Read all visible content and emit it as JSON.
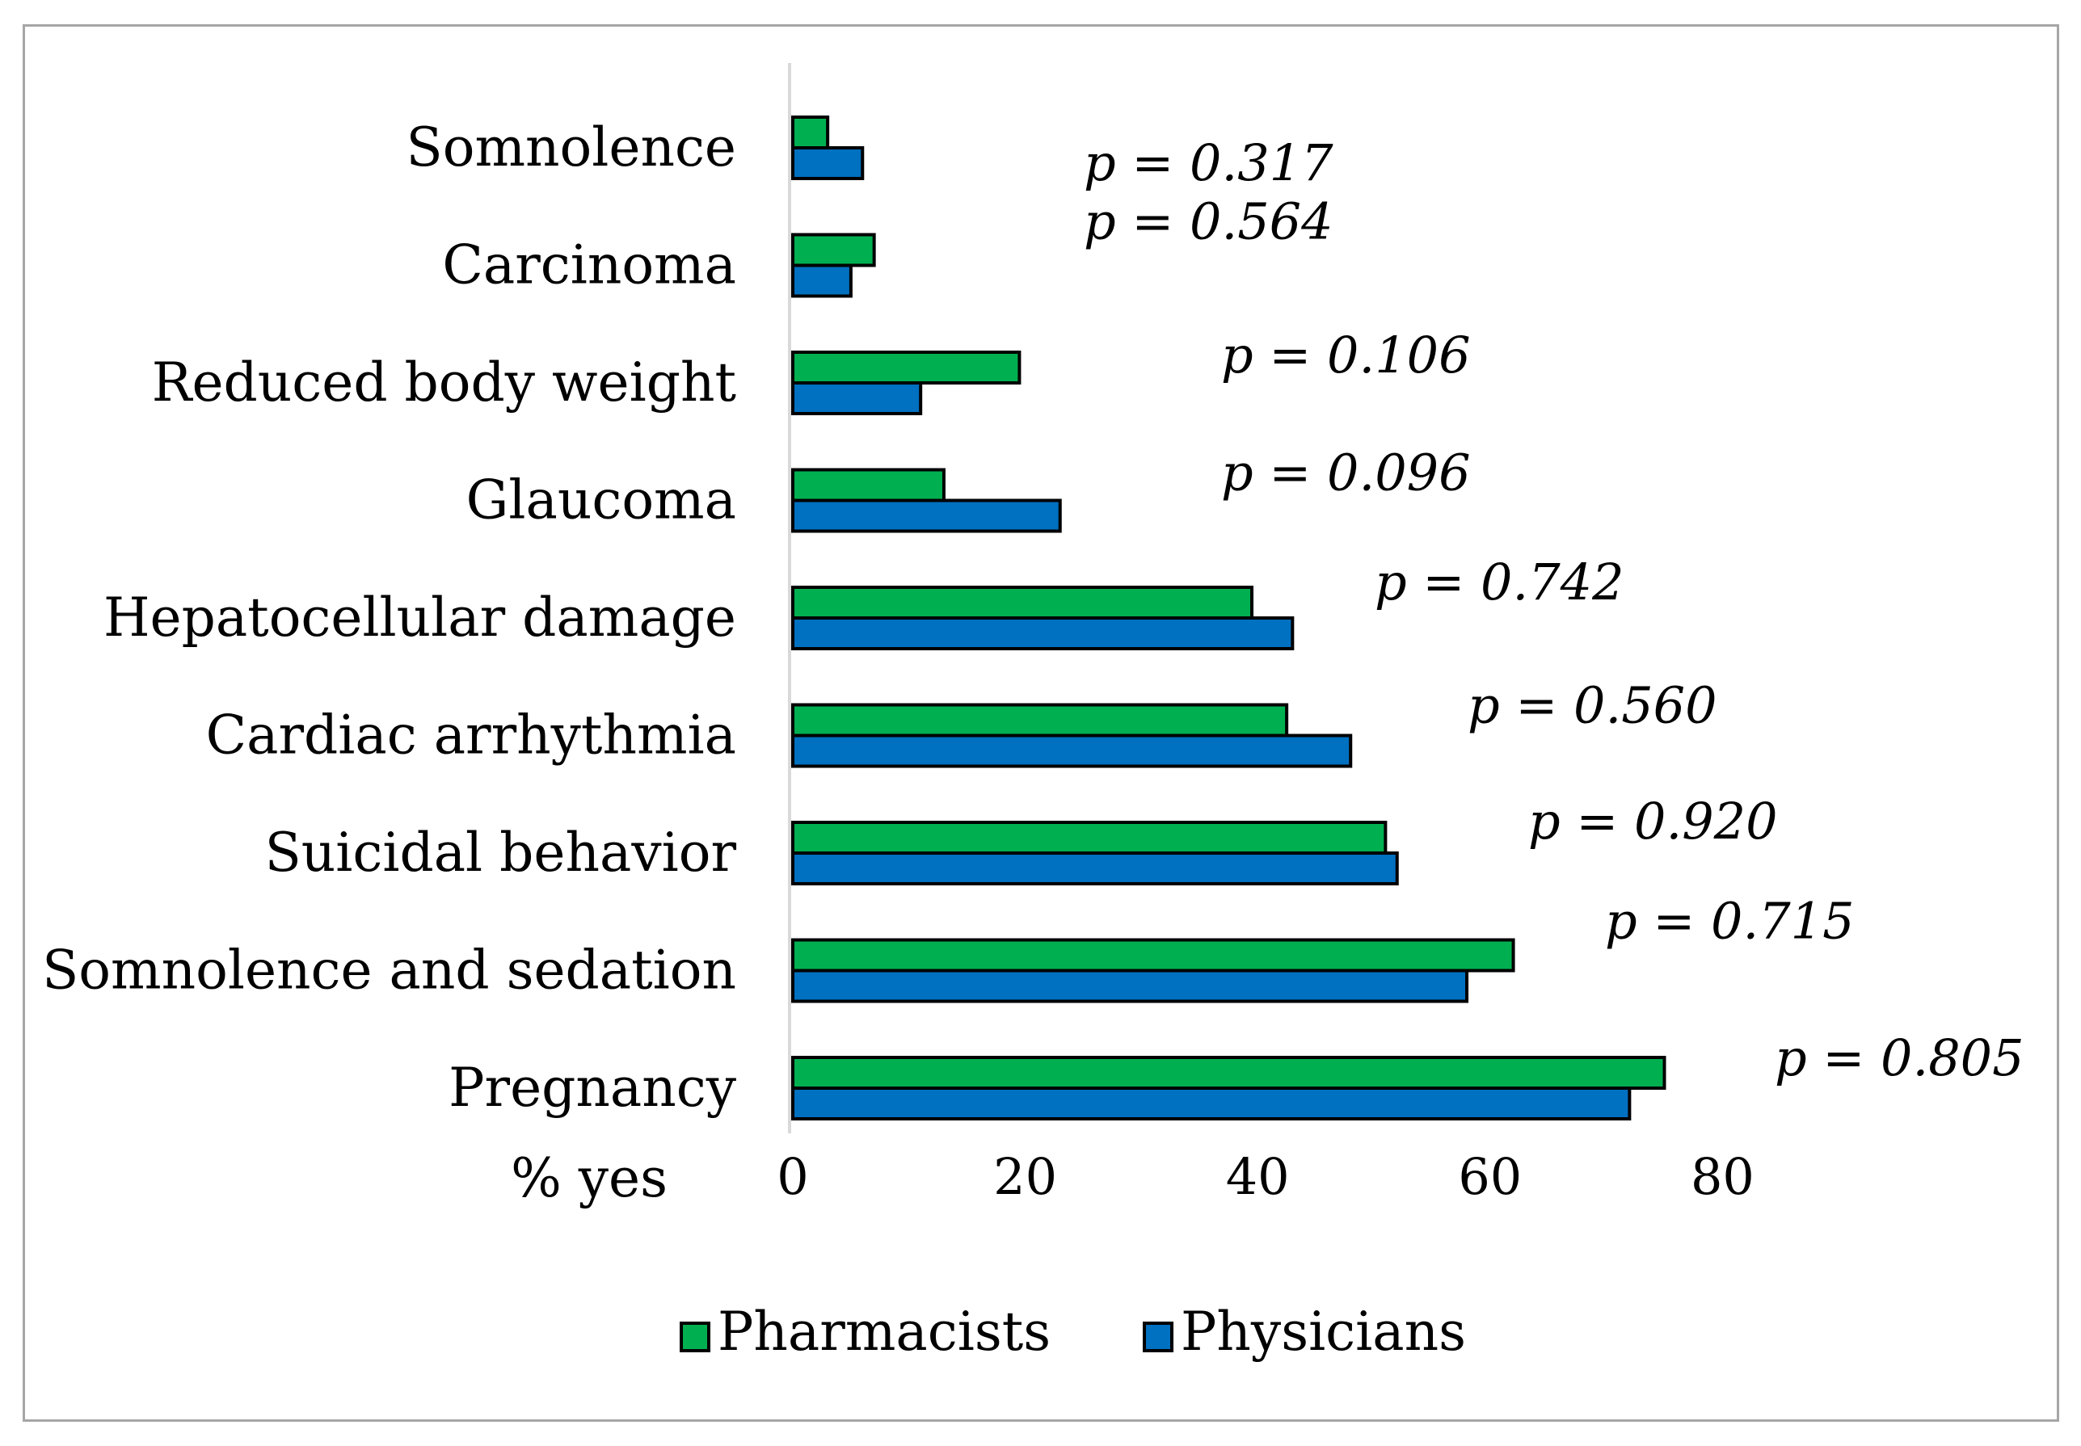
{
  "chart_data": {
    "type": "bar",
    "orientation": "horizontal",
    "categories": [
      "Somnolence",
      "Carcinoma",
      "Reduced body weight",
      "Glaucoma",
      "Hepatocellular damage",
      "Cardiac arrhythmia",
      "Suicidal behavior",
      "Somnolence and sedation",
      "Pregnancy"
    ],
    "series": [
      {
        "name": "Pharmacists",
        "color": "#00b050",
        "values": [
          3,
          7,
          19.5,
          13,
          39.5,
          42.5,
          51,
          62,
          75
        ]
      },
      {
        "name": "Physicians",
        "color": "#0070c0",
        "values": [
          6,
          5,
          11,
          23,
          43,
          48,
          52,
          58,
          72
        ]
      }
    ],
    "p_values": [
      "p = 0.317",
      "p = 0.564",
      "p = 0.106",
      "p = 0.096",
      "p = 0.742",
      "p = 0.560",
      "p = 0.920",
      "p = 0.715",
      "p = 0.805"
    ],
    "xlabel": "% yes",
    "xticks": [
      0,
      20,
      40,
      60,
      80
    ],
    "xlim": [
      0,
      80
    ],
    "grid": false,
    "legend_position": "bottom"
  }
}
